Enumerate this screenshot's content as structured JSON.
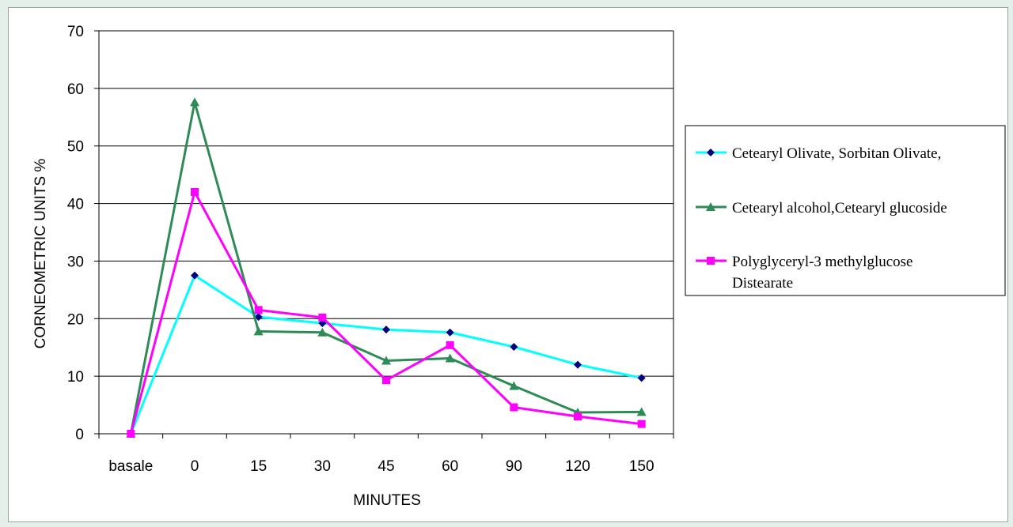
{
  "chart_data": {
    "type": "line",
    "title": "",
    "xlabel": "MINUTES",
    "ylabel": "CORNEOMETRIC UNITS %",
    "categories": [
      "basale",
      "0",
      "15",
      "30",
      "45",
      "60",
      "90",
      "120",
      "150"
    ],
    "ylim": [
      0,
      70
    ],
    "yticks": [
      0,
      10,
      20,
      30,
      40,
      50,
      60,
      70
    ],
    "grid": "horizontal",
    "legend_position": "right",
    "series": [
      {
        "name": "Cetearyl Olivate, Sorbitan Olivate,",
        "color": "#00ffff",
        "marker": "diamond",
        "marker_color": "#000080",
        "values": [
          0,
          27.5,
          20.3,
          19.2,
          18.1,
          17.6,
          15.1,
          12.0,
          9.7
        ]
      },
      {
        "name": "Cetearyl alcohol,Cetearyl glucoside",
        "color": "#2e8b57",
        "marker": "triangle",
        "marker_color": "#2e8b57",
        "values": [
          0,
          57.6,
          17.8,
          17.6,
          12.7,
          13.1,
          8.3,
          3.7,
          3.8
        ]
      },
      {
        "name": "Polyglyceryl-3 methylglucose Distearate",
        "name_lines": [
          "Polyglyceryl-3 methylglucose",
          "Distearate"
        ],
        "color": "#ff00ff",
        "marker": "square",
        "marker_color": "#ff00ff",
        "values": [
          0,
          42.0,
          21.5,
          20.2,
          9.3,
          15.4,
          4.6,
          3.0,
          1.7
        ]
      }
    ]
  }
}
